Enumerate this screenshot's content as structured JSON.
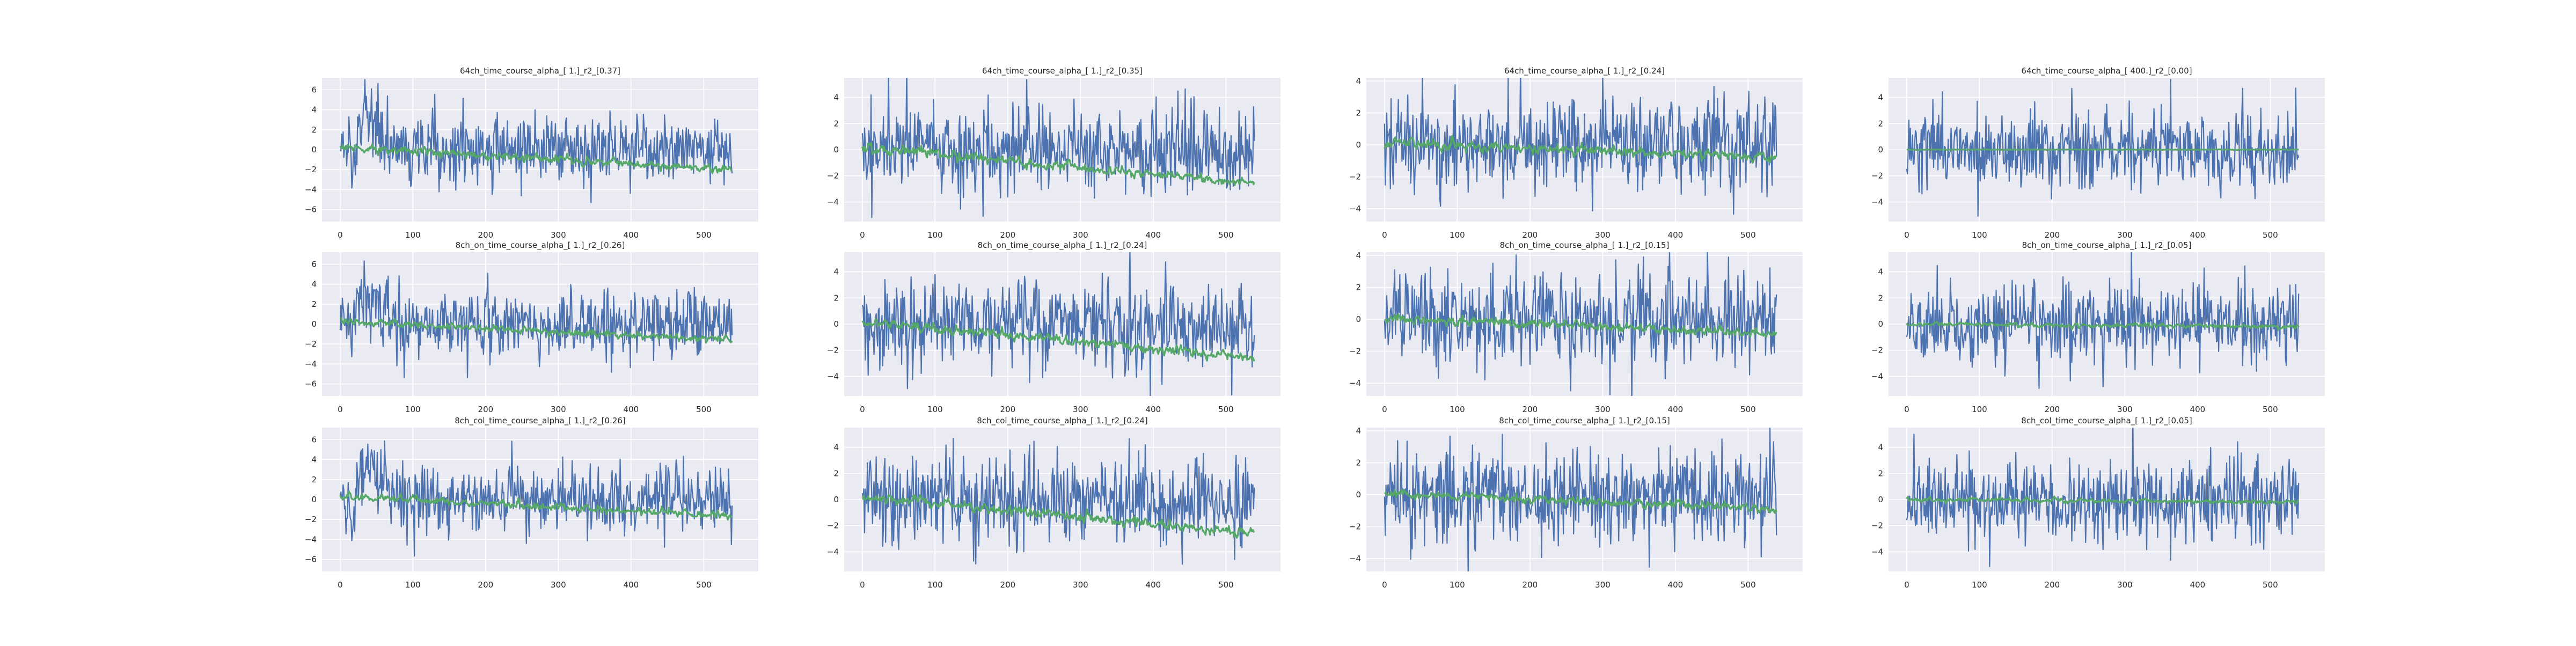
{
  "figure": {
    "colors": {
      "background": "#eaeaf2",
      "grid": "#ffffff",
      "tick_text": "#262626",
      "title_text": "#262626"
    },
    "series_colors": [
      "#4c72b0",
      "#55a868"
    ]
  },
  "chart_data": [
    {
      "type": "line",
      "title": "64ch_time_course_alpha_[ 1.]_r2_[0.37]",
      "xlabel": "",
      "ylabel": "",
      "xlim": [
        -25,
        575
      ],
      "ylim": [
        -7.2,
        7.2
      ],
      "xticks": [
        0,
        100,
        200,
        300,
        400,
        500
      ],
      "yticks": [
        -6,
        -4,
        -2,
        0,
        2,
        4,
        6
      ],
      "grid": true,
      "legend": "none",
      "series": [
        {
          "values_summary": {
            "n": 540,
            "x_start": 0,
            "x_end": 539,
            "baseline": 0.0,
            "amplitude": 1.7,
            "initial_burst": 3.5,
            "trend_end": 0.0
          },
          "color": "#4c72b0"
        },
        {
          "values_summary": {
            "n": 540,
            "x_start": 0,
            "x_end": 539,
            "baseline": 0.3,
            "amplitude": 0.4,
            "trend_end": -2.0
          },
          "color": "#55a868"
        }
      ]
    },
    {
      "type": "line",
      "title": "64ch_time_course_alpha_[ 1.]_r2_[0.35]",
      "xlabel": "",
      "ylabel": "",
      "xlim": [
        -25,
        575
      ],
      "ylim": [
        -5.5,
        5.5
      ],
      "xticks": [
        0,
        100,
        200,
        300,
        400,
        500
      ],
      "yticks": [
        -4,
        -2,
        0,
        2,
        4
      ],
      "grid": true,
      "legend": "none",
      "series": [
        {
          "values_summary": {
            "n": 540,
            "x_start": 0,
            "x_end": 539,
            "baseline": 0.0,
            "amplitude": 1.6,
            "initial_burst": 0,
            "trend_end": 0.0
          },
          "color": "#4c72b0"
        },
        {
          "values_summary": {
            "n": 540,
            "x_start": 0,
            "x_end": 539,
            "baseline": 0.2,
            "amplitude": 0.35,
            "trend_end": -2.6
          },
          "color": "#55a868"
        }
      ]
    },
    {
      "type": "line",
      "title": "64ch_time_course_alpha_[ 1.]_r2_[0.24]",
      "xlabel": "",
      "ylabel": "",
      "xlim": [
        -25,
        575
      ],
      "ylim": [
        -4.8,
        4.2
      ],
      "xticks": [
        0,
        100,
        200,
        300,
        400,
        500
      ],
      "yticks": [
        -4,
        -2,
        0,
        2,
        4
      ],
      "grid": true,
      "legend": "none",
      "series": [
        {
          "values_summary": {
            "n": 540,
            "x_start": 0,
            "x_end": 539,
            "baseline": 0.0,
            "amplitude": 1.5,
            "initial_burst": 0,
            "trend_end": 0.0
          },
          "color": "#4c72b0"
        },
        {
          "values_summary": {
            "n": 540,
            "x_start": 0,
            "x_end": 539,
            "baseline": 0.1,
            "amplitude": 0.3,
            "trend_end": -0.8
          },
          "color": "#55a868"
        }
      ]
    },
    {
      "type": "line",
      "title": "64ch_time_course_alpha_[ 400.]_r2_[0.00]",
      "xlabel": "",
      "ylabel": "",
      "xlim": [
        -25,
        575
      ],
      "ylim": [
        -5.5,
        5.5
      ],
      "xticks": [
        0,
        100,
        200,
        300,
        400,
        500
      ],
      "yticks": [
        -4,
        -2,
        0,
        2,
        4
      ],
      "grid": true,
      "legend": "none",
      "series": [
        {
          "values_summary": {
            "n": 540,
            "x_start": 0,
            "x_end": 539,
            "baseline": 0.0,
            "amplitude": 1.5,
            "initial_burst": 0,
            "trend_end": 0.0
          },
          "color": "#4c72b0"
        },
        {
          "values_summary": {
            "n": 540,
            "x_start": 0,
            "x_end": 539,
            "baseline": 0.0,
            "amplitude": 0.02,
            "trend_end": 0.0
          },
          "color": "#55a868"
        }
      ]
    },
    {
      "type": "line",
      "title": "8ch_on_time_course_alpha_[ 1.]_r2_[0.26]",
      "xlabel": "",
      "ylabel": "",
      "xlim": [
        -25,
        575
      ],
      "ylim": [
        -7.2,
        7.2
      ],
      "xticks": [
        0,
        100,
        200,
        300,
        400,
        500
      ],
      "yticks": [
        -6,
        -4,
        -2,
        0,
        2,
        4,
        6
      ],
      "grid": true,
      "legend": "none",
      "series": [
        {
          "values_summary": {
            "n": 540,
            "x_start": 0,
            "x_end": 539,
            "baseline": 0.0,
            "amplitude": 1.7,
            "initial_burst": 3.5,
            "trend_end": 0.0
          },
          "color": "#4c72b0"
        },
        {
          "values_summary": {
            "n": 540,
            "x_start": 0,
            "x_end": 539,
            "baseline": 0.3,
            "amplitude": 0.35,
            "trend_end": -1.6
          },
          "color": "#55a868"
        }
      ]
    },
    {
      "type": "line",
      "title": "8ch_on_time_course_alpha_[ 1.]_r2_[0.24]",
      "xlabel": "",
      "ylabel": "",
      "xlim": [
        -25,
        575
      ],
      "ylim": [
        -5.5,
        5.5
      ],
      "xticks": [
        0,
        100,
        200,
        300,
        400,
        500
      ],
      "yticks": [
        -4,
        -2,
        0,
        2,
        4
      ],
      "grid": true,
      "legend": "none",
      "series": [
        {
          "values_summary": {
            "n": 540,
            "x_start": 0,
            "x_end": 539,
            "baseline": 0.0,
            "amplitude": 1.6,
            "initial_burst": 0,
            "trend_end": 0.0
          },
          "color": "#4c72b0"
        },
        {
          "values_summary": {
            "n": 540,
            "x_start": 0,
            "x_end": 539,
            "baseline": 0.2,
            "amplitude": 0.35,
            "trend_end": -2.6
          },
          "color": "#55a868"
        }
      ]
    },
    {
      "type": "line",
      "title": "8ch_on_time_course_alpha_[ 1.]_r2_[0.15]",
      "xlabel": "",
      "ylabel": "",
      "xlim": [
        -25,
        575
      ],
      "ylim": [
        -4.8,
        4.2
      ],
      "xticks": [
        0,
        100,
        200,
        300,
        400,
        500
      ],
      "yticks": [
        -4,
        -2,
        0,
        2,
        4
      ],
      "grid": true,
      "legend": "none",
      "series": [
        {
          "values_summary": {
            "n": 540,
            "x_start": 0,
            "x_end": 539,
            "baseline": 0.0,
            "amplitude": 1.5,
            "initial_burst": 0,
            "trend_end": 0.0
          },
          "color": "#4c72b0"
        },
        {
          "values_summary": {
            "n": 540,
            "x_start": 0,
            "x_end": 539,
            "baseline": 0.1,
            "amplitude": 0.25,
            "trend_end": -0.9
          },
          "color": "#55a868"
        }
      ]
    },
    {
      "type": "line",
      "title": "8ch_on_time_course_alpha_[ 1.]_r2_[0.05]",
      "xlabel": "",
      "ylabel": "",
      "xlim": [
        -25,
        575
      ],
      "ylim": [
        -5.5,
        5.5
      ],
      "xticks": [
        0,
        100,
        200,
        300,
        400,
        500
      ],
      "yticks": [
        -4,
        -2,
        0,
        2,
        4
      ],
      "grid": true,
      "legend": "none",
      "series": [
        {
          "values_summary": {
            "n": 540,
            "x_start": 0,
            "x_end": 539,
            "baseline": 0.0,
            "amplitude": 1.5,
            "initial_burst": 0,
            "trend_end": 0.0
          },
          "color": "#4c72b0"
        },
        {
          "values_summary": {
            "n": 540,
            "x_start": 0,
            "x_end": 539,
            "baseline": 0.0,
            "amplitude": 0.15,
            "trend_end": -0.2
          },
          "color": "#55a868"
        }
      ]
    },
    {
      "type": "line",
      "title": "8ch_col_time_course_alpha_[ 1.]_r2_[0.26]",
      "xlabel": "",
      "ylabel": "",
      "xlim": [
        -25,
        575
      ],
      "ylim": [
        -7.2,
        7.2
      ],
      "xticks": [
        0,
        100,
        200,
        300,
        400,
        500
      ],
      "yticks": [
        -6,
        -4,
        -2,
        0,
        2,
        4,
        6
      ],
      "grid": true,
      "legend": "none",
      "series": [
        {
          "values_summary": {
            "n": 540,
            "x_start": 0,
            "x_end": 539,
            "baseline": 0.0,
            "amplitude": 1.7,
            "initial_burst": 3.5,
            "trend_end": 0.0
          },
          "color": "#4c72b0"
        },
        {
          "values_summary": {
            "n": 540,
            "x_start": 0,
            "x_end": 539,
            "baseline": 0.3,
            "amplitude": 0.35,
            "trend_end": -1.6
          },
          "color": "#55a868"
        }
      ]
    },
    {
      "type": "line",
      "title": "8ch_col_time_course_alpha_[ 1.]_r2_[0.24]",
      "xlabel": "",
      "ylabel": "",
      "xlim": [
        -25,
        575
      ],
      "ylim": [
        -5.5,
        5.5
      ],
      "xticks": [
        0,
        100,
        200,
        300,
        400,
        500
      ],
      "yticks": [
        -4,
        -2,
        0,
        2,
        4
      ],
      "grid": true,
      "legend": "none",
      "series": [
        {
          "values_summary": {
            "n": 540,
            "x_start": 0,
            "x_end": 539,
            "baseline": 0.0,
            "amplitude": 1.6,
            "initial_burst": 0,
            "trend_end": 0.0
          },
          "color": "#4c72b0"
        },
        {
          "values_summary": {
            "n": 540,
            "x_start": 0,
            "x_end": 539,
            "baseline": 0.2,
            "amplitude": 0.35,
            "trend_end": -2.6
          },
          "color": "#55a868"
        }
      ]
    },
    {
      "type": "line",
      "title": "8ch_col_time_course_alpha_[ 1.]_r2_[0.15]",
      "xlabel": "",
      "ylabel": "",
      "xlim": [
        -25,
        575
      ],
      "ylim": [
        -4.8,
        4.2
      ],
      "xticks": [
        0,
        100,
        200,
        300,
        400,
        500
      ],
      "yticks": [
        -4,
        -2,
        0,
        2,
        4
      ],
      "grid": true,
      "legend": "none",
      "series": [
        {
          "values_summary": {
            "n": 540,
            "x_start": 0,
            "x_end": 539,
            "baseline": 0.0,
            "amplitude": 1.5,
            "initial_burst": 0,
            "trend_end": 0.0
          },
          "color": "#4c72b0"
        },
        {
          "values_summary": {
            "n": 540,
            "x_start": 0,
            "x_end": 539,
            "baseline": 0.1,
            "amplitude": 0.25,
            "trend_end": -0.9
          },
          "color": "#55a868"
        }
      ]
    },
    {
      "type": "line",
      "title": "8ch_col_time_course_alpha_[ 1.]_r2_[0.05]",
      "xlabel": "",
      "ylabel": "",
      "xlim": [
        -25,
        575
      ],
      "ylim": [
        -5.5,
        5.5
      ],
      "xticks": [
        0,
        100,
        200,
        300,
        400,
        500
      ],
      "yticks": [
        -4,
        -2,
        0,
        2,
        4
      ],
      "grid": true,
      "legend": "none",
      "series": [
        {
          "values_summary": {
            "n": 540,
            "x_start": 0,
            "x_end": 539,
            "baseline": 0.0,
            "amplitude": 1.5,
            "initial_burst": 0,
            "trend_end": 0.0
          },
          "color": "#4c72b0"
        },
        {
          "values_summary": {
            "n": 540,
            "x_start": 0,
            "x_end": 539,
            "baseline": 0.0,
            "amplitude": 0.15,
            "trend_end": -0.2
          },
          "color": "#55a868"
        }
      ]
    }
  ]
}
